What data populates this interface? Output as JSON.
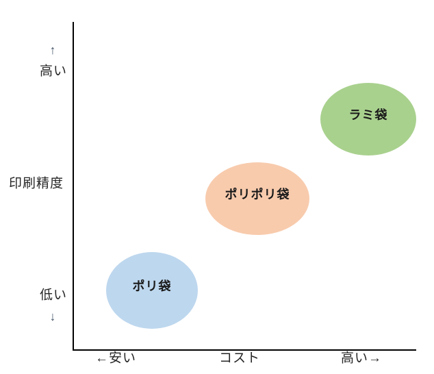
{
  "chart_data": {
    "type": "scatter",
    "title": "",
    "xlabel": "コスト",
    "ylabel": "印刷精度",
    "grid": false,
    "legend": false,
    "x_axis": {
      "title": "コスト",
      "low_label": "←安い",
      "high_label": "高い→",
      "range": [
        0,
        1
      ]
    },
    "y_axis": {
      "title": "印刷精度",
      "high_label": "高い",
      "low_label": "低い",
      "up_arrow": "↑",
      "down_arrow": "↓",
      "range": [
        0,
        1
      ]
    },
    "points": [
      {
        "label": "ポリ袋",
        "x": 0.23,
        "y": 0.18,
        "rx": 0.134,
        "ry": 0.117,
        "color": "#bdd7ee"
      },
      {
        "label": "ポリポリ袋",
        "x": 0.54,
        "y": 0.46,
        "rx": 0.152,
        "ry": 0.11,
        "color": "#f8cbad"
      },
      {
        "label": "ラミ袋",
        "x": 0.86,
        "y": 0.7,
        "rx": 0.14,
        "ry": 0.11,
        "color": "#a9d18e"
      }
    ]
  },
  "axes": {
    "y_up_arrow": "↑",
    "y_high": "高い",
    "y_title": "印刷精度",
    "y_low": "低い",
    "y_down_arrow": "↓",
    "x_cheap": "←安い",
    "x_title": "コスト",
    "x_expensive": "高い→"
  },
  "bubbles": [
    {
      "label": "ポリ袋",
      "color": "#bdd7ee"
    },
    {
      "label": "ポリポリ袋",
      "color": "#f8cbad"
    },
    {
      "label": "ラミ袋",
      "color": "#a9d18e"
    }
  ],
  "colors": {
    "axis_line": "#000000",
    "text": "#262626",
    "arrow": "#44546a",
    "background": "#ffffff"
  }
}
